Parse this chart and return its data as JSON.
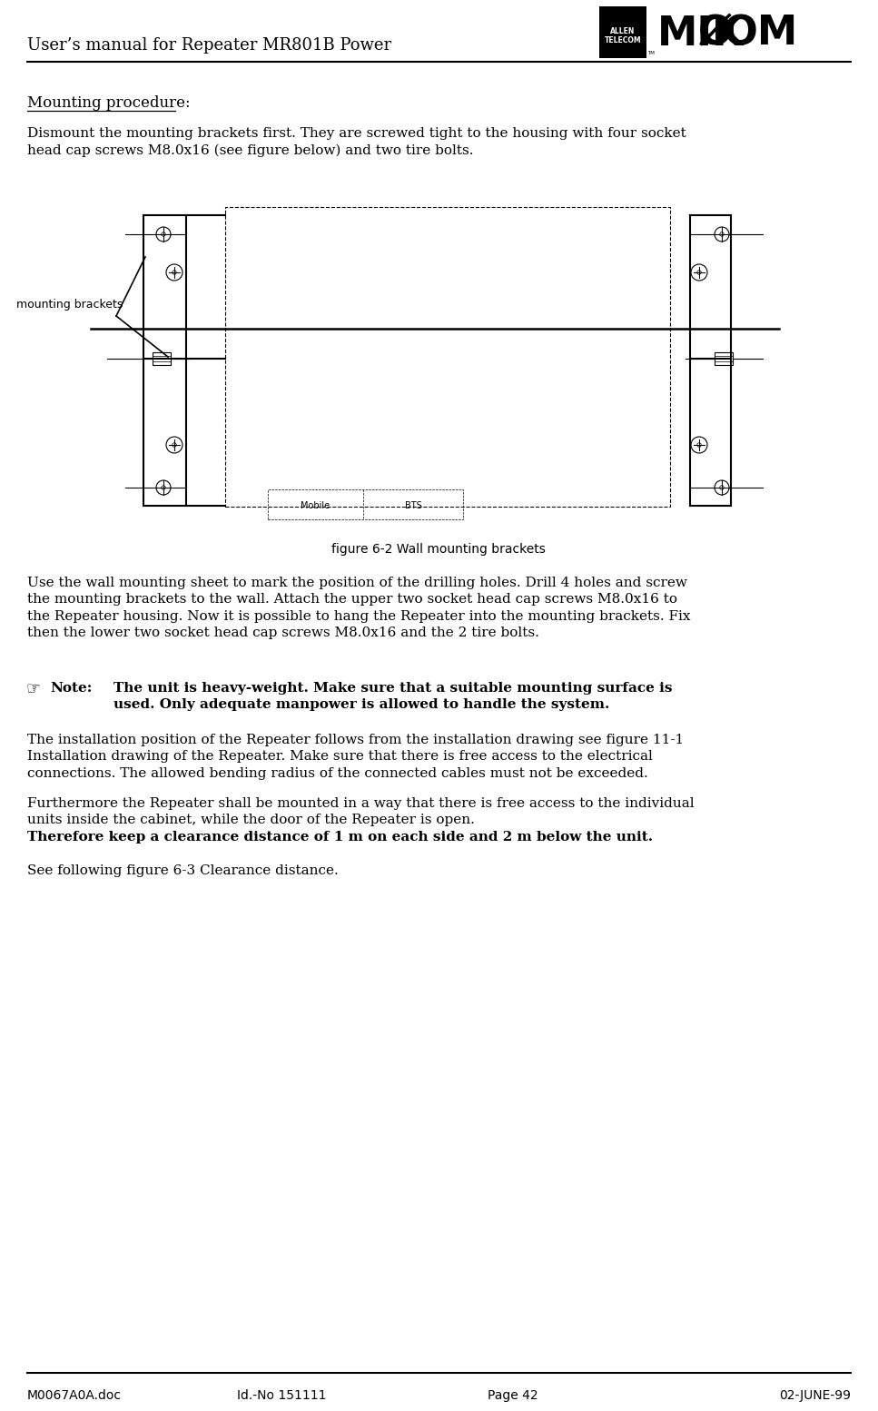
{
  "title_left": "User’s manual for Repeater MR801B Power",
  "footer_left": "M0067A0A.doc",
  "footer_center": "Id.-No 151111",
  "footer_page": "Page 42",
  "footer_date": "02-JUNE-99",
  "heading": "Mounting procedure:",
  "para1": "Dismount the mounting brackets first. They are screwed tight to the housing with four socket\nhead cap screws M8.0x16 (see figure below) and two tire bolts.",
  "fig_caption": "figure 6-2 Wall mounting brackets",
  "label_mounting_brackets": "mounting brackets",
  "para2": "Use the wall mounting sheet to mark the position of the drilling holes. Drill 4 holes and screw\nthe mounting brackets to the wall. Attach the upper two socket head cap screws M8.0x16 to\nthe Repeater housing. Now it is possible to hang the Repeater into the mounting brackets. Fix\nthen the lower two socket head cap screws M8.0x16 and the 2 tire bolts.",
  "note_label": "Note:",
  "note_line1": "The unit is heavy-weight. Make sure that a suitable mounting surface is",
  "note_line2": "used. Only adequate manpower is allowed to handle the system.",
  "para3": "The installation position of the Repeater follows from the installation drawing see figure 11-1\nInstallation drawing of the Repeater. Make sure that there is free access to the electrical\nconnections. The allowed bending radius of the connected cables must not be exceeded.",
  "para4": "Furthermore the Repeater shall be mounted in a way that there is free access to the individual\nunits inside the cabinet, while the door of the Repeater is open.",
  "para4b": "Therefore keep a clearance distance of 1 m on each side and 2 m below the unit.",
  "para5": "See following figure 6-3 Clearance distance.",
  "bg_color": "#ffffff",
  "text_color": "#000000",
  "font_size_body": 11,
  "font_size_heading": 12,
  "font_size_footer": 10,
  "font_size_title": 13
}
